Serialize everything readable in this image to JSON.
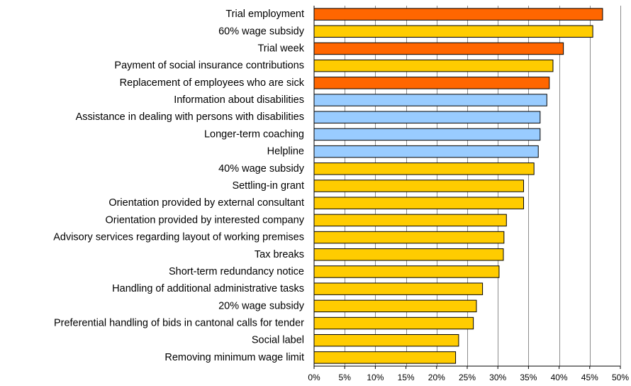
{
  "chart_data": {
    "type": "bar",
    "orientation": "horizontal",
    "title": "",
    "xlabel": "",
    "ylabel": "",
    "xlim": [
      0,
      50
    ],
    "x_ticks": [
      "0%",
      "5%",
      "10%",
      "15%",
      "20%",
      "25%",
      "30%",
      "35%",
      "40%",
      "45%",
      "50%"
    ],
    "grid": true,
    "legend": "none",
    "colors": {
      "orange": "#ff6600",
      "yellow": "#ffcc00",
      "blue": "#99ccff"
    },
    "categories": [
      "Trial employment",
      "60% wage subsidy",
      "Trial week",
      "Payment of social insurance contributions",
      "Replacement of employees who are sick",
      "Information about disabilities",
      "Assistance in dealing with persons with disabilities",
      "Longer-term coaching",
      "Helpline",
      "40% wage subsidy",
      "Settling-in grant",
      "Orientation provided by external consultant",
      "Orientation provided by interested company",
      "Advisory services regarding layout of working premises",
      "Tax breaks",
      "Short-term redundancy notice",
      "Handling of additional administrative tasks",
      "20% wage subsidy",
      "Preferential handling of bids in cantonal calls for tender",
      "Social label",
      "Removing minimum wage limit"
    ],
    "values": [
      47.1,
      45.5,
      40.7,
      39.0,
      38.4,
      38.0,
      36.9,
      36.9,
      36.6,
      35.9,
      34.2,
      34.2,
      31.4,
      31.0,
      30.9,
      30.2,
      27.5,
      26.5,
      26.0,
      23.6,
      23.1
    ],
    "bar_colors": [
      "orange",
      "yellow",
      "orange",
      "yellow",
      "orange",
      "blue",
      "blue",
      "blue",
      "blue",
      "yellow",
      "yellow",
      "yellow",
      "yellow",
      "yellow",
      "yellow",
      "yellow",
      "yellow",
      "yellow",
      "yellow",
      "yellow",
      "yellow"
    ]
  }
}
